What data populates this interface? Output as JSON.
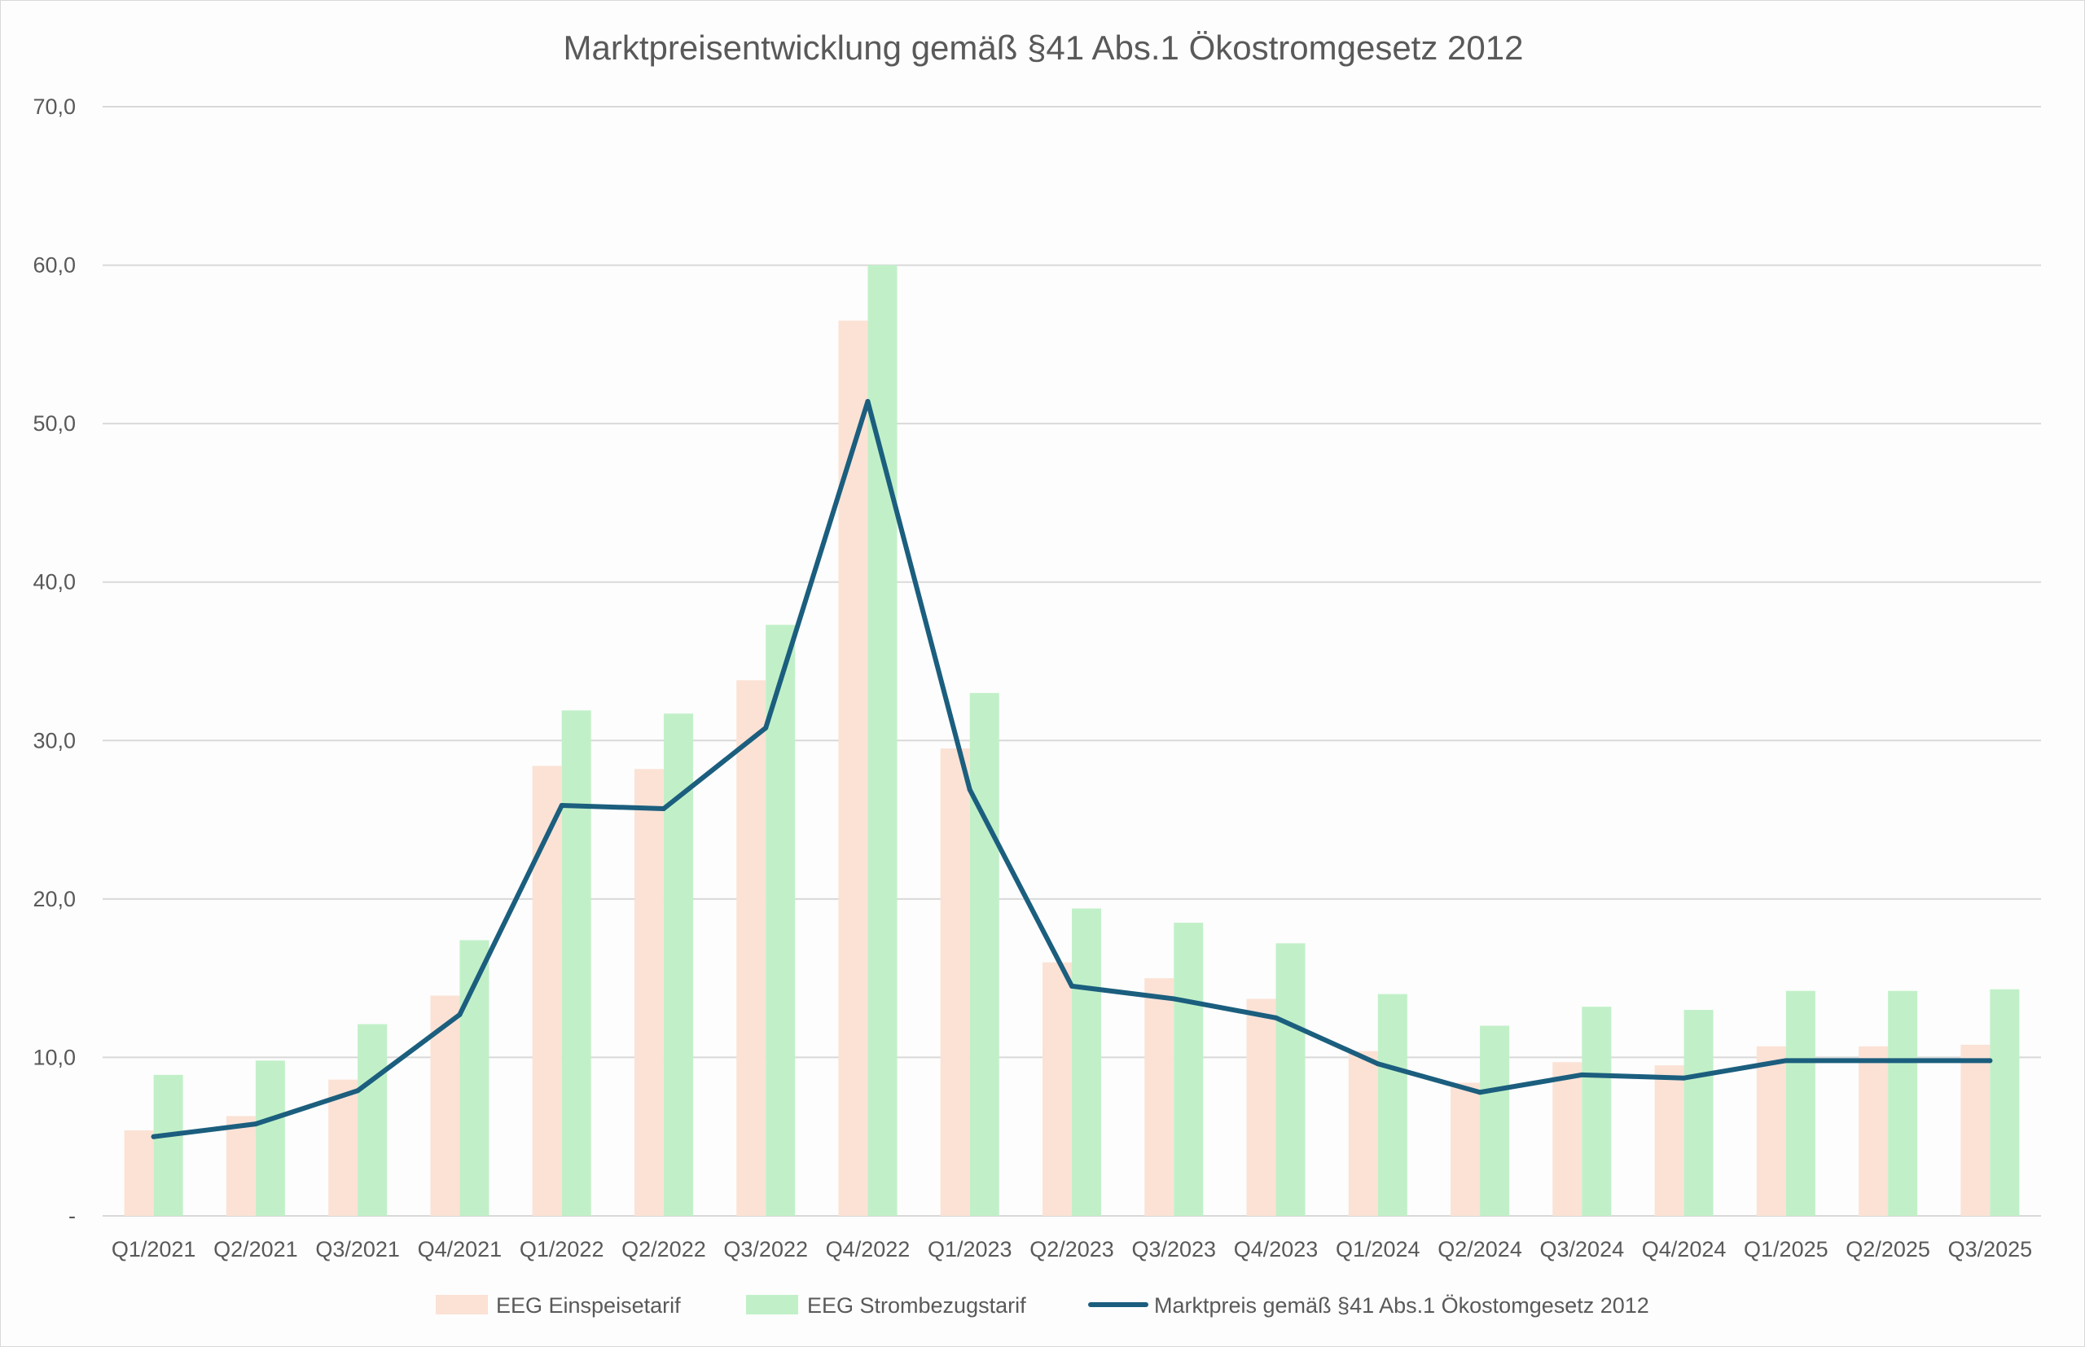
{
  "chart_data": {
    "type": "bar",
    "title": "Marktpreisentwicklung gemäß §41 Abs.1 Ökostromgesetz 2012",
    "xlabel": "",
    "ylabel": "",
    "ylim": [
      0,
      70
    ],
    "yticks": [
      {
        "value": 0,
        "label": "-"
      },
      {
        "value": 10,
        "label": "10,0"
      },
      {
        "value": 20,
        "label": "20,0"
      },
      {
        "value": 30,
        "label": "30,0"
      },
      {
        "value": 40,
        "label": "40,0"
      },
      {
        "value": 50,
        "label": "50,0"
      },
      {
        "value": 60,
        "label": "60,0"
      },
      {
        "value": 70,
        "label": "70,0"
      }
    ],
    "grid": true,
    "legend_position": "bottom",
    "categories": [
      "Q1/2021",
      "Q2/2021",
      "Q3/2021",
      "Q4/2021",
      "Q1/2022",
      "Q2/2022",
      "Q3/2022",
      "Q4/2022",
      "Q1/2023",
      "Q2/2023",
      "Q3/2023",
      "Q4/2023",
      "Q1/2024",
      "Q2/2024",
      "Q3/2024",
      "Q4/2024",
      "Q1/2025",
      "Q2/2025",
      "Q3/2025"
    ],
    "series": [
      {
        "name": "EEG Einspeisetarif",
        "type": "bar",
        "color": "#fbe2d5",
        "values": [
          5.4,
          6.3,
          8.6,
          13.9,
          28.4,
          28.2,
          33.8,
          56.5,
          29.5,
          16.0,
          15.0,
          13.7,
          10.4,
          8.4,
          9.7,
          9.5,
          10.7,
          10.7,
          10.8
        ]
      },
      {
        "name": "EEG Strombezugstarif",
        "type": "bar",
        "color": "#c1f0c8",
        "values": [
          8.9,
          9.8,
          12.1,
          17.4,
          31.9,
          31.7,
          37.3,
          60.0,
          33.0,
          19.4,
          18.5,
          17.2,
          14.0,
          12.0,
          13.2,
          13.0,
          14.2,
          14.2,
          14.3
        ]
      },
      {
        "name": "Marktpreis gemäß §41 Abs.1 Ökostomgesetz 2012",
        "type": "line",
        "color": "#1b5e7e",
        "values": [
          5.0,
          5.8,
          7.9,
          12.7,
          25.9,
          25.7,
          30.8,
          51.4,
          26.9,
          14.5,
          13.7,
          12.5,
          9.6,
          7.8,
          8.9,
          8.7,
          9.8,
          9.8,
          9.8
        ]
      }
    ]
  }
}
